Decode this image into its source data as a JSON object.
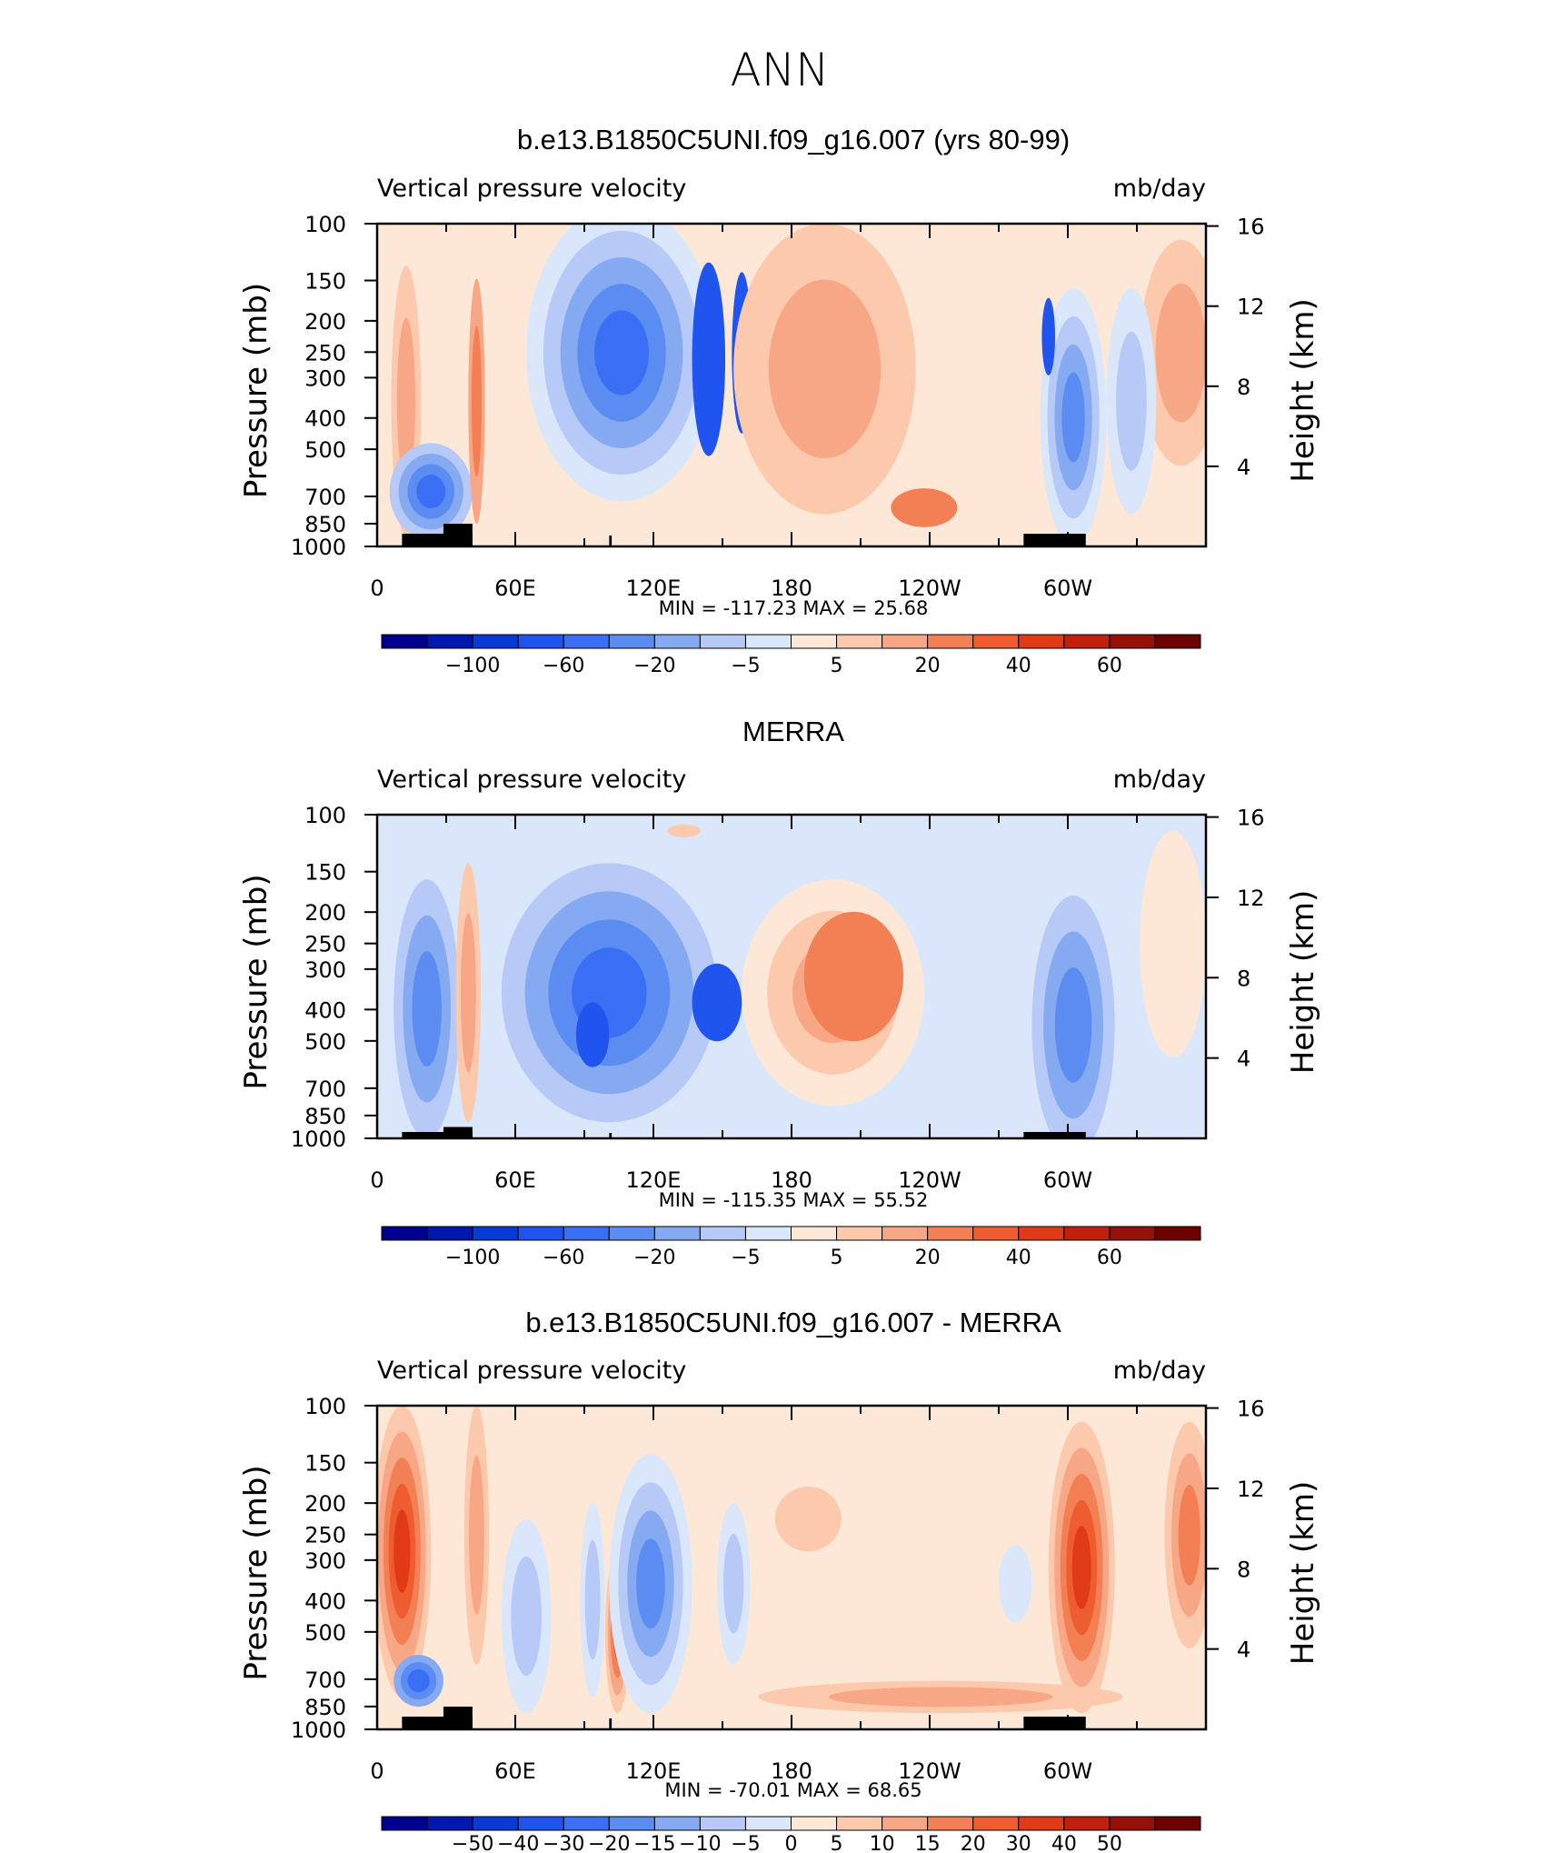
{
  "figure": {
    "title": "ANN",
    "left_label": "Vertical pressure velocity",
    "right_label": "mb/day",
    "y_axis_label": "Pressure (mb)",
    "y2_axis_label": "Height (km)"
  },
  "chart_data": [
    {
      "type": "heatmap",
      "title": "b.e13.B1850C5UNI.f09_g16.007 (yrs 80-99)",
      "x_tick_labels": [
        "0",
        "60E",
        "120E",
        "180",
        "120W",
        "60W"
      ],
      "x_ticks_lon": [
        0,
        60,
        120,
        180,
        240,
        300
      ],
      "x_range": [
        0,
        360
      ],
      "y_tick_labels": [
        "100",
        "150",
        "200",
        "250",
        "300",
        "400",
        "500",
        "700",
        "850",
        "1000"
      ],
      "y_ticks": [
        100,
        150,
        200,
        250,
        300,
        400,
        500,
        700,
        850,
        1000
      ],
      "ylim": [
        1000,
        100
      ],
      "y_log_scale": true,
      "y2_tick_labels": [
        "16",
        "12",
        "8",
        "4"
      ],
      "y2_ticks_km": [
        16,
        12,
        8,
        4
      ],
      "min_max_text": "MIN = -117.23 MAX = 25.68",
      "min": -117.23,
      "max": 25.68,
      "colorbar": {
        "colors": [
          "#00008f",
          "#0018b0",
          "#0a3ad6",
          "#2054ee",
          "#3a6ef4",
          "#5a8cf2",
          "#86aaf2",
          "#b6c9f7",
          "#dae7fb",
          "#fde8d8",
          "#fcc9ad",
          "#f8a786",
          "#f38055",
          "#ee5c30",
          "#e03a17",
          "#c0200d",
          "#96100a",
          "#6e0000"
        ],
        "tick_labels": [
          "-100",
          "-60",
          "-20",
          "-5",
          "5",
          "20",
          "40",
          "60"
        ],
        "tick_after_box": [
          1,
          3,
          5,
          7,
          9,
          11,
          13,
          15
        ]
      }
    },
    {
      "type": "heatmap",
      "title": "MERRA",
      "x_tick_labels": [
        "0",
        "60E",
        "120E",
        "180",
        "120W",
        "60W"
      ],
      "x_ticks_lon": [
        0,
        60,
        120,
        180,
        240,
        300
      ],
      "x_range": [
        0,
        360
      ],
      "y_tick_labels": [
        "100",
        "150",
        "200",
        "250",
        "300",
        "400",
        "500",
        "700",
        "850",
        "1000"
      ],
      "y_ticks": [
        100,
        150,
        200,
        250,
        300,
        400,
        500,
        700,
        850,
        1000
      ],
      "ylim": [
        1000,
        100
      ],
      "y_log_scale": true,
      "y2_tick_labels": [
        "16",
        "12",
        "8",
        "4"
      ],
      "y2_ticks_km": [
        16,
        12,
        8,
        4
      ],
      "min_max_text": "MIN = -115.35 MAX = 55.52",
      "min": -115.35,
      "max": 55.52,
      "colorbar": {
        "colors": [
          "#00008f",
          "#0018b0",
          "#0a3ad6",
          "#2054ee",
          "#3a6ef4",
          "#5a8cf2",
          "#86aaf2",
          "#b6c9f7",
          "#dae7fb",
          "#fde8d8",
          "#fcc9ad",
          "#f8a786",
          "#f38055",
          "#ee5c30",
          "#e03a17",
          "#c0200d",
          "#96100a",
          "#6e0000"
        ],
        "tick_labels": [
          "-100",
          "-60",
          "-20",
          "-5",
          "5",
          "20",
          "40",
          "60"
        ],
        "tick_after_box": [
          1,
          3,
          5,
          7,
          9,
          11,
          13,
          15
        ]
      }
    },
    {
      "type": "heatmap",
      "title": "b.e13.B1850C5UNI.f09_g16.007 - MERRA",
      "x_tick_labels": [
        "0",
        "60E",
        "120E",
        "180",
        "120W",
        "60W"
      ],
      "x_ticks_lon": [
        0,
        60,
        120,
        180,
        240,
        300
      ],
      "x_range": [
        0,
        360
      ],
      "y_tick_labels": [
        "100",
        "150",
        "200",
        "250",
        "300",
        "400",
        "500",
        "700",
        "850",
        "1000"
      ],
      "y_ticks": [
        100,
        150,
        200,
        250,
        300,
        400,
        500,
        700,
        850,
        1000
      ],
      "ylim": [
        1000,
        100
      ],
      "y_log_scale": true,
      "y2_tick_labels": [
        "16",
        "12",
        "8",
        "4"
      ],
      "y2_ticks_km": [
        16,
        12,
        8,
        4
      ],
      "min_max_text": "MIN = -70.01 MAX = 68.65",
      "min": -70.01,
      "max": 68.65,
      "colorbar": {
        "colors": [
          "#00008f",
          "#0018b0",
          "#0a3ad6",
          "#2054ee",
          "#3a6ef4",
          "#5a8cf2",
          "#86aaf2",
          "#b6c9f7",
          "#dae7fb",
          "#fde8d8",
          "#fcc9ad",
          "#f8a786",
          "#f38055",
          "#ee5c30",
          "#e03a17",
          "#c0200d",
          "#96100a",
          "#6e0000"
        ],
        "tick_labels": [
          "-50",
          "-40",
          "-30",
          "-20",
          "-15",
          "-10",
          "-5",
          "0",
          "5",
          "10",
          "15",
          "20",
          "30",
          "40",
          "50"
        ],
        "tick_after_box": [
          1,
          2,
          3,
          4,
          5,
          6,
          7,
          8,
          9,
          10,
          11,
          12,
          13,
          14,
          15
        ]
      }
    }
  ]
}
